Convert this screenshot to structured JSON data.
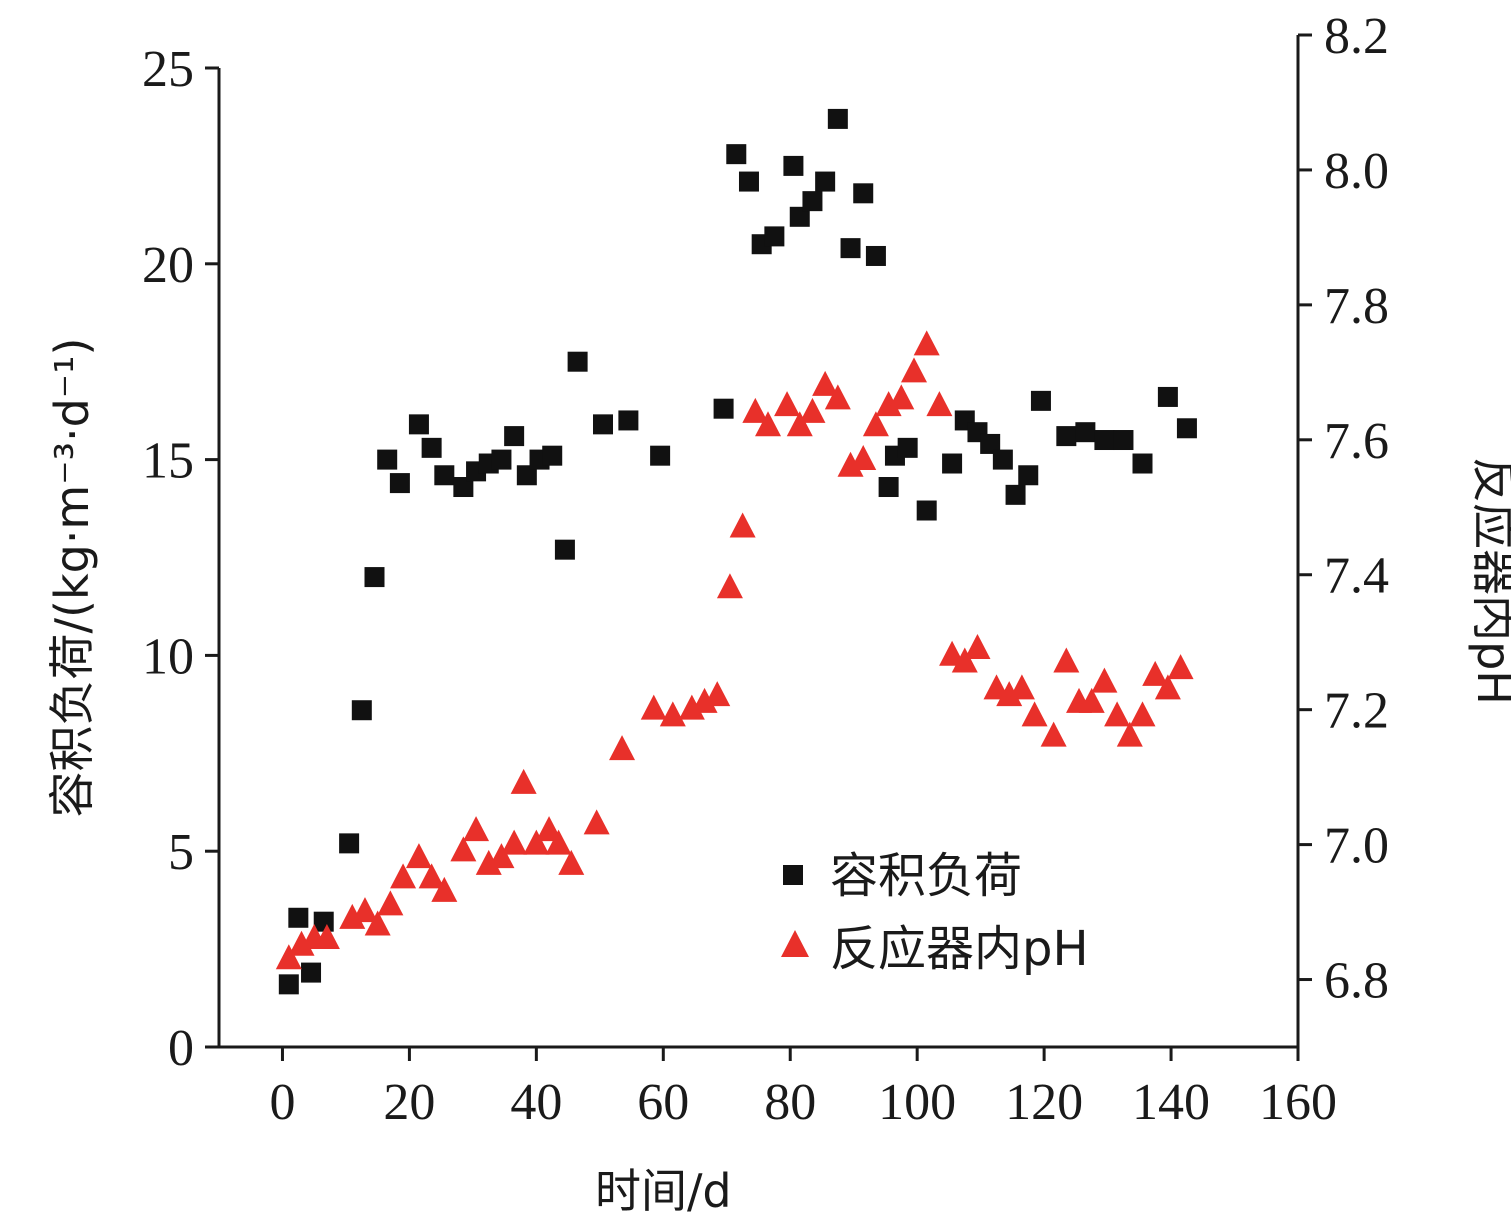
{
  "chart_data": {
    "type": "scatter",
    "x_axis": {
      "label": "时间/d",
      "range": [
        -10,
        160
      ],
      "ticks": [
        0,
        20,
        40,
        60,
        80,
        100,
        120,
        140,
        160
      ]
    },
    "y_axis_left": {
      "label": "容积负荷/(kg·m⁻³·d⁻¹)",
      "range": [
        0,
        25
      ],
      "ticks": [
        0,
        5,
        10,
        15,
        20,
        25
      ]
    },
    "y_axis_right": {
      "label": "反应器内pH",
      "range": [
        6.7,
        8.2
      ],
      "ticks": [
        "6.8",
        "7.0",
        "7.2",
        "7.4",
        "7.6",
        "7.8",
        "8.0",
        "8.2"
      ]
    },
    "legend": {
      "position": "bottom-right"
    },
    "series": [
      {
        "name": "容积负荷",
        "marker": "square",
        "color": "#111111",
        "axis": "left",
        "x": [
          1,
          2.5,
          4.5,
          6.5,
          10.5,
          12.5,
          14.5,
          16.5,
          18.5,
          21.5,
          23.5,
          25.5,
          28.5,
          30.5,
          32.5,
          34.5,
          36.5,
          38.5,
          40.5,
          42.5,
          44.5,
          46.5,
          50.5,
          54.5,
          59.5,
          69.5,
          71.5,
          73.5,
          75.5,
          77.5,
          80.5,
          81.5,
          83.5,
          85.5,
          87.5,
          89.5,
          91.5,
          93.5,
          95.5,
          96.5,
          98.5,
          101.5,
          105.5,
          107.5,
          109.5,
          111.5,
          113.5,
          115.5,
          117.5,
          119.5,
          123.5,
          126.5,
          129.5,
          132.5,
          135.5,
          139.5,
          142.5
        ],
        "y": [
          1.6,
          3.3,
          1.9,
          3.2,
          5.2,
          8.6,
          12.0,
          15.0,
          14.4,
          15.9,
          15.3,
          14.6,
          14.3,
          14.7,
          14.9,
          15.0,
          15.6,
          14.6,
          15.0,
          15.1,
          12.7,
          17.5,
          15.9,
          16.0,
          15.1,
          16.3,
          22.8,
          22.1,
          20.5,
          20.7,
          22.5,
          21.2,
          21.6,
          22.1,
          23.7,
          20.4,
          21.8,
          20.2,
          14.3,
          15.1,
          15.3,
          13.7,
          14.9,
          16.0,
          15.7,
          15.4,
          15.0,
          14.1,
          14.6,
          16.5,
          15.6,
          15.7,
          15.5,
          15.5,
          14.9,
          16.6,
          15.8
        ]
      },
      {
        "name": "反应器内pH",
        "marker": "triangle",
        "color": "#e8302a",
        "axis": "right",
        "x": [
          1,
          3,
          5,
          7,
          11,
          13,
          15,
          17,
          19,
          21.5,
          23.5,
          25.5,
          28.5,
          30.5,
          32.5,
          34.5,
          36.5,
          38,
          40,
          42,
          43.5,
          45.5,
          49.5,
          53.5,
          58.5,
          61.5,
          64.5,
          66.5,
          68.5,
          70.5,
          72.5,
          74.5,
          76.5,
          79.5,
          81.5,
          83.5,
          85.5,
          87.5,
          89.5,
          91.5,
          93.5,
          95.5,
          97.5,
          99.5,
          101.5,
          103.5,
          105.5,
          107.5,
          109.5,
          112.5,
          114.5,
          116.5,
          118.5,
          121.5,
          123.5,
          125.5,
          127.5,
          129.5,
          131.5,
          133.5,
          135.5,
          137.5,
          139.5,
          141.5
        ],
        "y": [
          6.83,
          6.85,
          6.86,
          6.86,
          6.89,
          6.9,
          6.88,
          6.91,
          6.95,
          6.98,
          6.95,
          6.93,
          6.99,
          7.02,
          6.97,
          6.98,
          7.0,
          7.09,
          7.0,
          7.02,
          7.0,
          6.97,
          7.03,
          7.14,
          7.2,
          7.19,
          7.2,
          7.21,
          7.22,
          7.38,
          7.47,
          7.64,
          7.62,
          7.65,
          7.62,
          7.64,
          7.68,
          7.66,
          7.56,
          7.57,
          7.62,
          7.65,
          7.66,
          7.7,
          7.74,
          7.65,
          7.28,
          7.27,
          7.29,
          7.23,
          7.22,
          7.23,
          7.19,
          7.16,
          7.27,
          7.21,
          7.21,
          7.24,
          7.19,
          7.16,
          7.19,
          7.25,
          7.23,
          7.26
        ]
      }
    ]
  }
}
